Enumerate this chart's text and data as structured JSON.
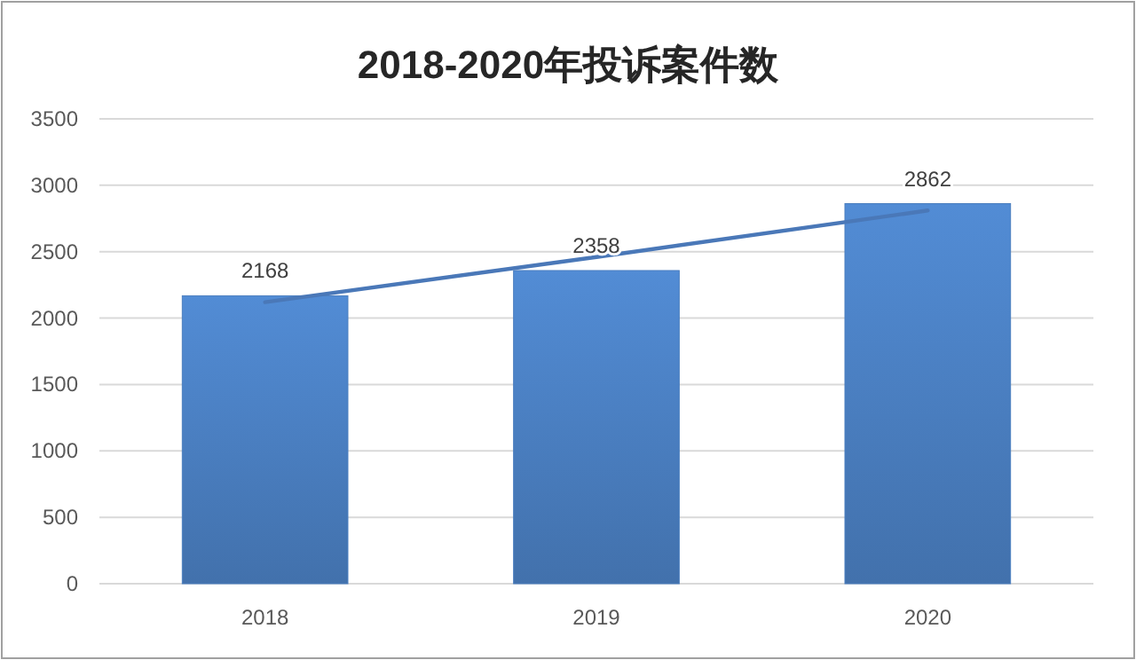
{
  "chart_data": {
    "type": "bar",
    "title": "2018-2020年投诉案件数",
    "categories": [
      "2018",
      "2019",
      "2020"
    ],
    "series": [
      {
        "color": "#4a7ebf",
        "values": [
          2168,
          2358,
          2862
        ],
        "value_labels": [
          "2168",
          "2358",
          "2862"
        ]
      },
      {
        "type": "line",
        "color": "#4a78b8",
        "values": [
          2120,
          2460,
          2810
        ]
      }
    ],
    "ylim": [
      0,
      3500
    ],
    "yticks": [
      0,
      500,
      1000,
      1500,
      2000,
      2500,
      3000,
      3500
    ],
    "grid": "y"
  }
}
